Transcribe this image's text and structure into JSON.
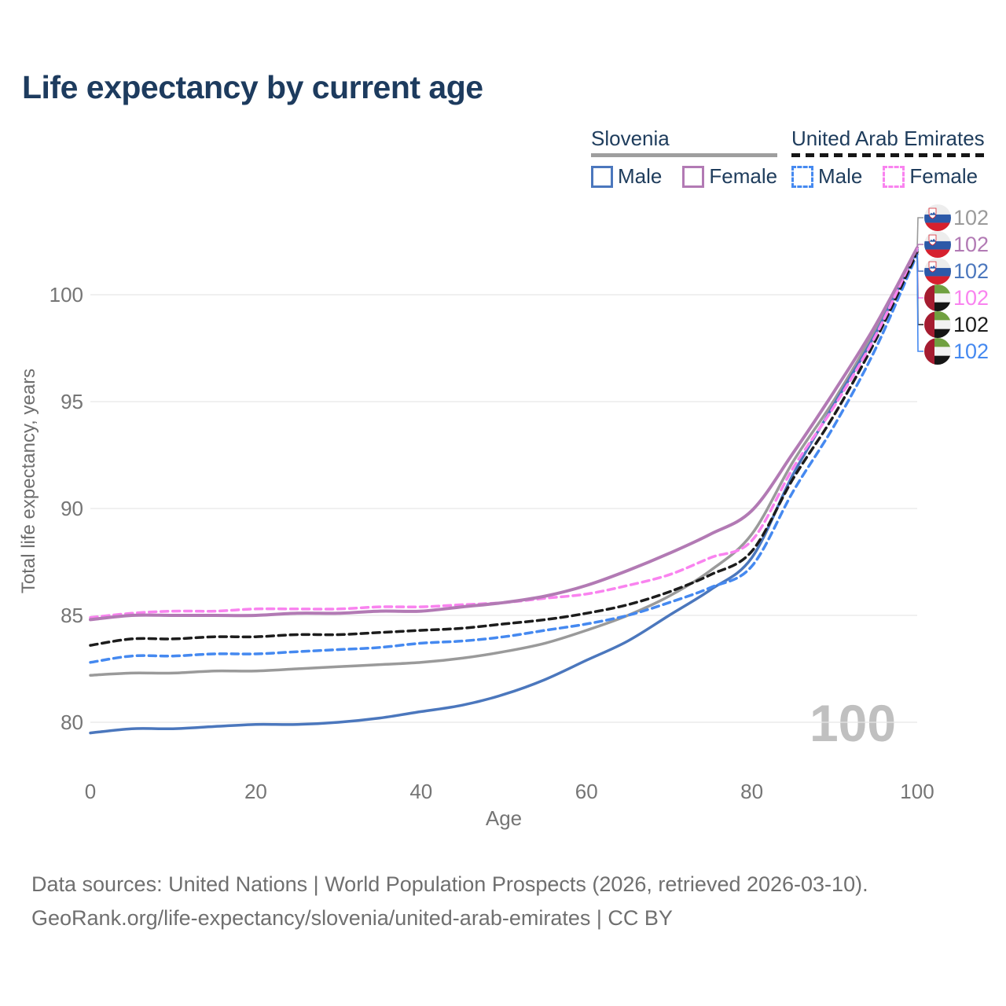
{
  "title": "Life expectancy by current age",
  "legend": {
    "groups": [
      {
        "country": "Slovenia",
        "line_style": "solid",
        "underline_color": "#9e9e9e",
        "items": [
          {
            "label": "Male",
            "color": "#4b77bd",
            "dashed": false
          },
          {
            "label": "Female",
            "color": "#b27ab4",
            "dashed": false
          }
        ]
      },
      {
        "country": "United Arab Emirates",
        "line_style": "dashed",
        "underline_color": "#161616",
        "items": [
          {
            "label": "Male",
            "color": "#4589f0",
            "dashed": true
          },
          {
            "label": "Female",
            "color": "#f983ef",
            "dashed": true
          }
        ]
      }
    ]
  },
  "chart_data": {
    "type": "line",
    "title": "Life expectancy by current age",
    "xlabel": "Age",
    "ylabel": "Total life expectancy, years",
    "x": [
      0,
      5,
      10,
      15,
      20,
      25,
      30,
      35,
      40,
      45,
      50,
      55,
      60,
      65,
      70,
      75,
      80,
      85,
      90,
      95,
      100
    ],
    "xticks": [
      0,
      20,
      40,
      60,
      80,
      100
    ],
    "yticks": [
      80,
      85,
      90,
      95,
      100
    ],
    "xlim": [
      0,
      100
    ],
    "ylim": [
      78.5,
      103
    ],
    "grid": "horizontal-only",
    "legend_position": "top-right",
    "series": [
      {
        "key": "slovenia-total",
        "name": "Slovenia — Total",
        "country": "Slovenia",
        "sex": "total",
        "color": "#9a9a9a",
        "dash": "solid",
        "width": 3.5,
        "flag": "si",
        "end_label": "102",
        "values": [
          82.2,
          82.3,
          82.3,
          82.4,
          82.4,
          82.5,
          82.6,
          82.7,
          82.8,
          83.0,
          83.3,
          83.7,
          84.3,
          85.0,
          85.9,
          87.1,
          88.8,
          92.2,
          95.1,
          98.4,
          102.1
        ]
      },
      {
        "key": "slovenia-female",
        "name": "Slovenia — Female",
        "country": "Slovenia",
        "sex": "female",
        "color": "#b27ab4",
        "dash": "solid",
        "width": 4,
        "flag": "si",
        "end_label": "102",
        "values": [
          84.8,
          85.0,
          85.0,
          85.0,
          85.0,
          85.1,
          85.1,
          85.2,
          85.2,
          85.4,
          85.6,
          85.9,
          86.4,
          87.1,
          87.9,
          88.8,
          89.9,
          92.6,
          95.5,
          98.6,
          102.2
        ]
      },
      {
        "key": "slovenia-male",
        "name": "Slovenia — Male",
        "country": "Slovenia",
        "sex": "male",
        "color": "#4b77bd",
        "dash": "solid",
        "width": 3.5,
        "flag": "si",
        "end_label": "102",
        "values": [
          79.5,
          79.7,
          79.7,
          79.8,
          79.9,
          79.9,
          80.0,
          80.2,
          80.5,
          80.8,
          81.3,
          82.0,
          82.9,
          83.8,
          85.0,
          86.2,
          87.7,
          91.6,
          94.9,
          98.2,
          102.1
        ]
      },
      {
        "key": "uae-female",
        "name": "United Arab Emirates — Female",
        "country": "United Arab Emirates",
        "sex": "female",
        "color": "#f983ef",
        "dash": "dashed",
        "width": 3.5,
        "flag": "ae",
        "end_label": "102",
        "values": [
          84.9,
          85.1,
          85.2,
          85.2,
          85.3,
          85.3,
          85.3,
          85.4,
          85.4,
          85.5,
          85.6,
          85.8,
          86.0,
          86.4,
          86.9,
          87.7,
          88.5,
          91.9,
          94.8,
          98.1,
          102.2
        ]
      },
      {
        "key": "uae-total",
        "name": "United Arab Emirates — Total",
        "country": "United Arab Emirates",
        "sex": "total",
        "color": "#1c1c1c",
        "dash": "dashed",
        "width": 3.5,
        "flag": "ae",
        "end_label": "102",
        "values": [
          83.6,
          83.9,
          83.9,
          84.0,
          84.0,
          84.1,
          84.1,
          84.2,
          84.3,
          84.4,
          84.6,
          84.8,
          85.1,
          85.5,
          86.1,
          86.9,
          88.0,
          91.4,
          94.4,
          97.9,
          102.0
        ]
      },
      {
        "key": "uae-male",
        "name": "United Arab Emirates — Male",
        "country": "United Arab Emirates",
        "sex": "male",
        "color": "#4589f0",
        "dash": "dashed",
        "width": 3.5,
        "flag": "ae",
        "end_label": "102",
        "values": [
          82.8,
          83.1,
          83.1,
          83.2,
          83.2,
          83.3,
          83.4,
          83.5,
          83.7,
          83.8,
          84.0,
          84.3,
          84.6,
          85.0,
          85.6,
          86.3,
          87.3,
          90.8,
          93.9,
          97.5,
          101.9
        ]
      }
    ],
    "watermark": "100",
    "colors": {
      "grid": "#e7e7e7",
      "tick_text": "#757575",
      "axis_title": "#6e6e6e",
      "watermark": "#c0c0c0"
    },
    "flag_colors": {
      "si": {
        "white": "#ededed",
        "blue": "#2c59a8",
        "red": "#d6202e"
      },
      "ae": {
        "red": "#a51c30",
        "green": "#70a040",
        "white": "#f2f2f2",
        "black": "#151515"
      }
    }
  },
  "footer": {
    "line1": "Data sources: United Nations | World Population Prospects (2026, retrieved 2026-03-10).",
    "line2": "GeoRank.org/life-expectancy/slovenia/united-arab-emirates | CC BY"
  }
}
